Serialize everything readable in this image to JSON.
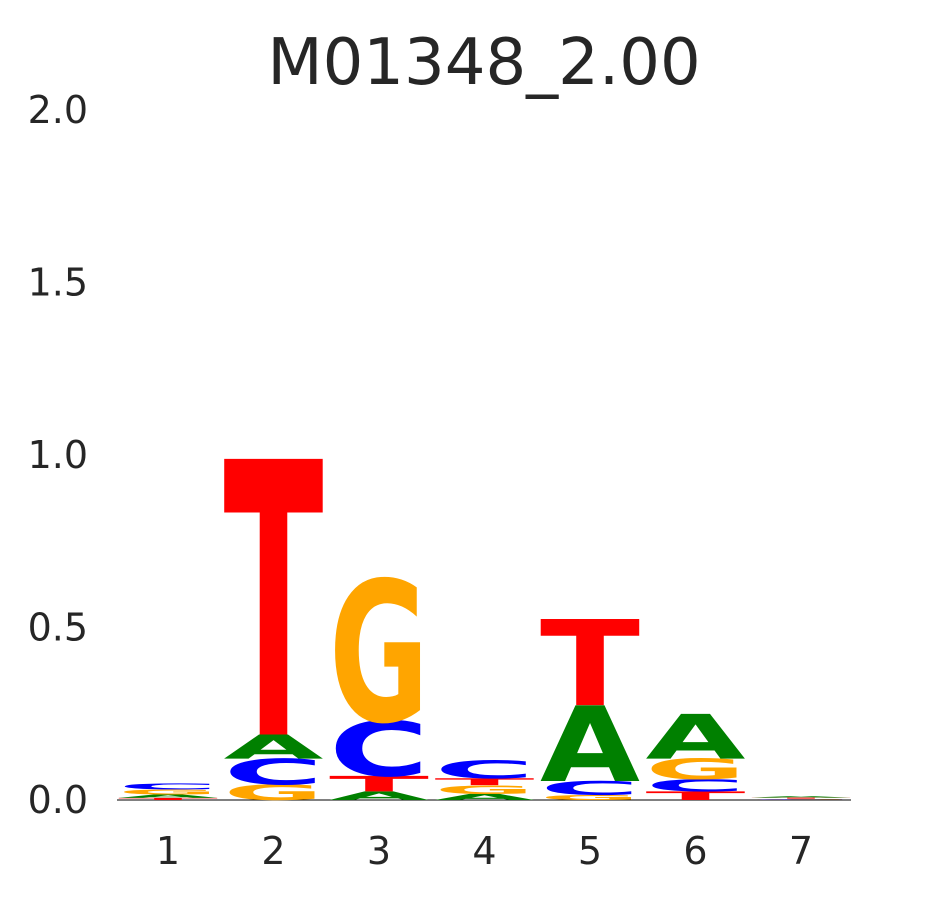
{
  "chart_data": {
    "type": "logo",
    "title": "M01348_2.00",
    "categories": [
      "1",
      "2",
      "3",
      "4",
      "5",
      "6",
      "7"
    ],
    "colors": {
      "A": "#008000",
      "C": "#0000ff",
      "G": "#ffa500",
      "T": "#ff0000"
    },
    "stacks": [
      [
        {
          "letter": "T",
          "value": 0.006
        },
        {
          "letter": "A",
          "value": 0.01
        },
        {
          "letter": "G",
          "value": 0.015
        },
        {
          "letter": "C",
          "value": 0.017
        }
      ],
      [
        {
          "letter": "G",
          "value": 0.045
        },
        {
          "letter": "C",
          "value": 0.075
        },
        {
          "letter": "A",
          "value": 0.07
        },
        {
          "letter": "T",
          "value": 0.8
        }
      ],
      [
        {
          "letter": "A",
          "value": 0.025
        },
        {
          "letter": "T",
          "value": 0.045
        },
        {
          "letter": "C",
          "value": 0.16
        },
        {
          "letter": "G",
          "value": 0.41
        }
      ],
      [
        {
          "letter": "A",
          "value": 0.018
        },
        {
          "letter": "G",
          "value": 0.025
        },
        {
          "letter": "T",
          "value": 0.02
        },
        {
          "letter": "C",
          "value": 0.052
        }
      ],
      [
        {
          "letter": "G",
          "value": 0.015
        },
        {
          "letter": "C",
          "value": 0.04
        },
        {
          "letter": "A",
          "value": 0.22
        },
        {
          "letter": "T",
          "value": 0.25
        }
      ],
      [
        {
          "letter": "T",
          "value": 0.025
        },
        {
          "letter": "C",
          "value": 0.035
        },
        {
          "letter": "G",
          "value": 0.06
        },
        {
          "letter": "A",
          "value": 0.13
        }
      ],
      [
        {
          "letter": "C",
          "value": 0.002
        },
        {
          "letter": "G",
          "value": 0.002
        },
        {
          "letter": "T",
          "value": 0.003
        },
        {
          "letter": "A",
          "value": 0.004
        }
      ]
    ],
    "ylim": [
      0,
      2
    ],
    "yticks": [
      {
        "value": 0,
        "label": "0.0"
      },
      0.5,
      {
        "value": 1,
        "label": "1.0"
      },
      1.5,
      {
        "value": 2,
        "label": "2.0"
      }
    ]
  }
}
